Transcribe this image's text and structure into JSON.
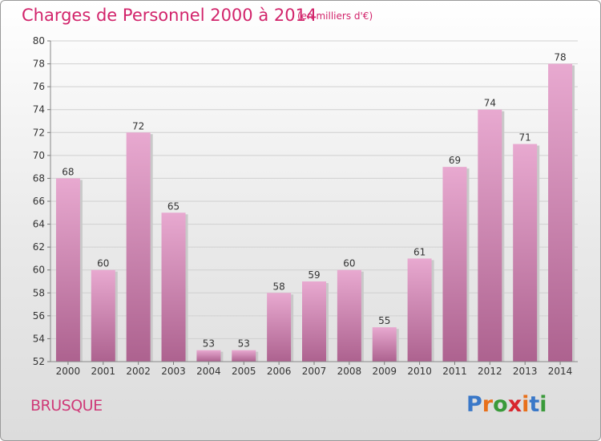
{
  "header": {
    "title": "Charges de Personnel 2000 à 2014",
    "subtitle": "(en milliers d'€)"
  },
  "footer": {
    "commune": "BRUSQUE",
    "logo_text": "Proxiti"
  },
  "colors": {
    "title": "#d2246b",
    "bar_light": "#e8a9d0",
    "bar_dark": "#ad628f",
    "logo": [
      "#3a78c8",
      "#e8701a",
      "#3a9a3a",
      "#d8262e",
      "#e8701a",
      "#3a78c8",
      "#3a9a3a"
    ]
  },
  "chart_data": {
    "type": "bar",
    "categories": [
      "2000",
      "2001",
      "2002",
      "2003",
      "2004",
      "2005",
      "2006",
      "2007",
      "2008",
      "2009",
      "2010",
      "2011",
      "2012",
      "2013",
      "2014"
    ],
    "values": [
      68,
      60,
      72,
      65,
      53,
      53,
      58,
      59,
      60,
      55,
      61,
      69,
      74,
      71,
      78
    ],
    "ylim": [
      52,
      80
    ],
    "yticks": [
      52,
      54,
      56,
      58,
      60,
      62,
      64,
      66,
      68,
      70,
      72,
      74,
      76,
      78,
      80
    ],
    "grid": true,
    "data_labels": true
  }
}
